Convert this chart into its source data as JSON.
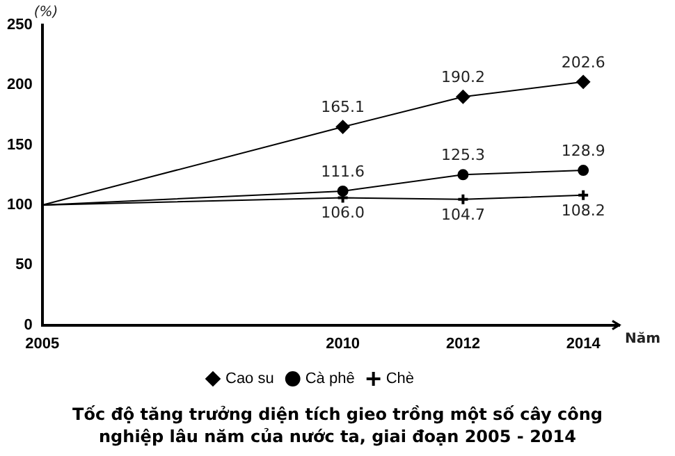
{
  "chart_data": {
    "type": "line",
    "title": "Tốc độ tăng trưởng diện tích gieo trồng một số cây công nghiệp lâu năm của nước ta, giai đoạn 2005 - 2014",
    "xlabel": "Năm",
    "ylabel": "(%)",
    "x": [
      2005,
      2010,
      2012,
      2014
    ],
    "xlim": [
      2005,
      2014.6
    ],
    "xticks": [
      2005,
      2010,
      2012,
      2014
    ],
    "ylim": [
      0,
      250
    ],
    "yticks": [
      0,
      50,
      100,
      150,
      200,
      250
    ],
    "grid": false,
    "legend": "bottom",
    "line_style": "solid",
    "series": [
      {
        "name": "Cao su",
        "color": "#000000",
        "marker": "diamond",
        "values": [
          100,
          165.1,
          190.2,
          202.6
        ],
        "value_labels": [
          null,
          "165.1",
          "190.2",
          "202.6"
        ]
      },
      {
        "name": "Cà phê",
        "color": "#000000",
        "marker": "circle",
        "values": [
          100,
          111.6,
          125.3,
          128.9
        ],
        "value_labels": [
          null,
          "111.6",
          "125.3",
          "128.9"
        ]
      },
      {
        "name": "Chè",
        "color": "#000000",
        "marker": "cross",
        "values": [
          100,
          106.0,
          104.7,
          108.2
        ],
        "value_labels": [
          null,
          "106.0",
          "104.7",
          "108.2"
        ]
      }
    ]
  }
}
